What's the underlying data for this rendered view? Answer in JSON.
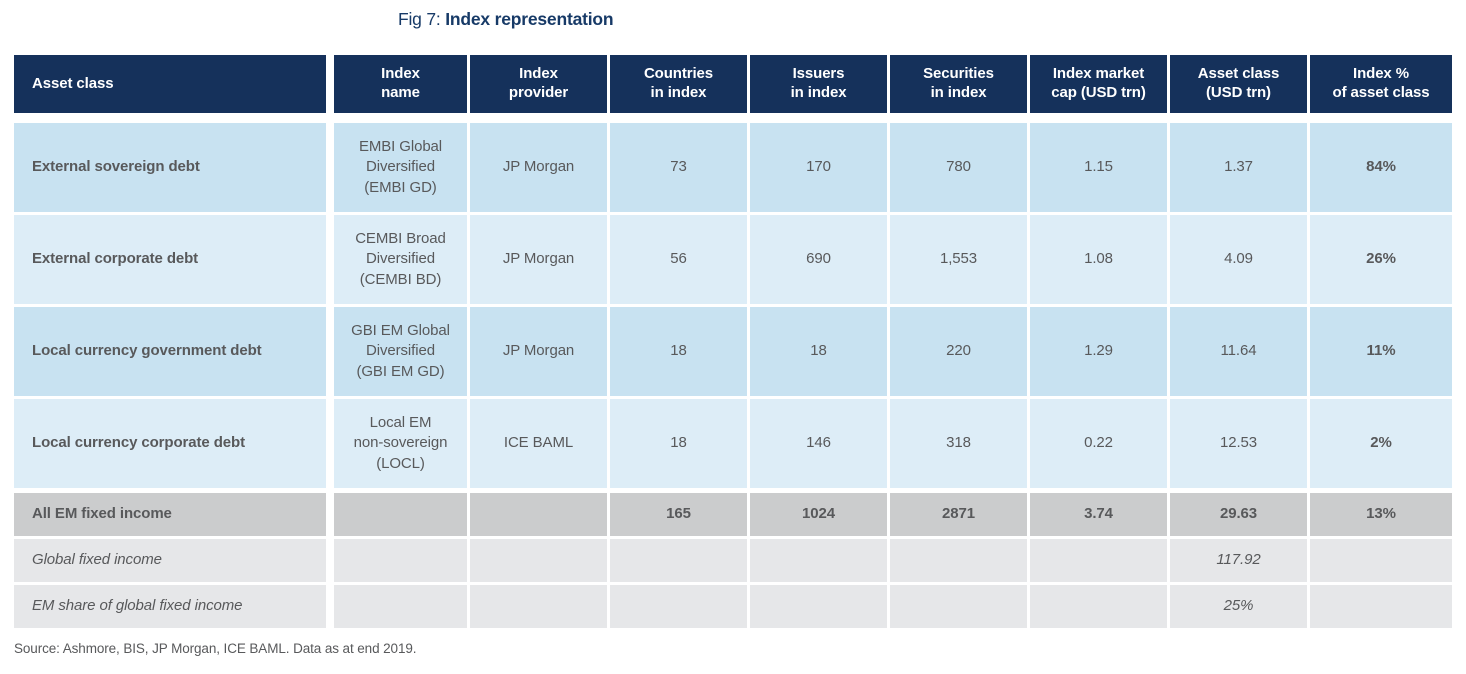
{
  "title": {
    "prefix": "Fig 7:",
    "main": "Index representation"
  },
  "source": "Source: Ashmore, BIS, JP Morgan, ICE BAML. Data as at end 2019.",
  "colors": {
    "header_bg": "#15315b",
    "title_text": "#173a67",
    "row_blue_dark": "#c8e2f1",
    "row_blue_light": "#ddedf7",
    "summary_gray_dark": "#cbcccd",
    "summary_gray_light": "#e6e7e9",
    "body_text": "#58595b",
    "header_text": "#ffffff"
  },
  "table": {
    "headers": [
      "Asset class",
      "Index\nname",
      "Index\nprovider",
      "Countries\nin index",
      "Issuers\nin index",
      "Securities\nin index",
      "Index market\ncap (USD trn)",
      "Asset class\n(USD trn)",
      "Index %\nof asset class"
    ],
    "rows": [
      {
        "cells": [
          "External sovereign debt",
          "EMBI Global\nDiversified\n(EMBI GD)",
          "JP Morgan",
          "73",
          "170",
          "780",
          "1.15",
          "1.37",
          "84%"
        ]
      },
      {
        "cells": [
          "External corporate debt",
          "CEMBI Broad\nDiversified\n(CEMBI BD)",
          "JP Morgan",
          "56",
          "690",
          "1,553",
          "1.08",
          "4.09",
          "26%"
        ]
      },
      {
        "cells": [
          "Local currency government debt",
          "GBI EM Global\nDiversified\n(GBI EM GD)",
          "JP Morgan",
          "18",
          "18",
          "220",
          "1.29",
          "11.64",
          "11%"
        ]
      },
      {
        "cells": [
          "Local currency corporate debt",
          "Local EM\nnon-sovereign\n(LOCL)",
          "ICE BAML",
          "18",
          "146",
          "318",
          "0.22",
          "12.53",
          "2%"
        ]
      },
      {
        "cells": [
          "All EM fixed income",
          "",
          "",
          "165",
          "1024",
          "2871",
          "3.74",
          "29.63",
          "13%"
        ]
      },
      {
        "cells": [
          "Global fixed income",
          "",
          "",
          "",
          "",
          "",
          "",
          "117.92",
          ""
        ]
      },
      {
        "cells": [
          "EM share of global fixed income",
          "",
          "",
          "",
          "",
          "",
          "",
          "25%",
          ""
        ]
      }
    ]
  }
}
